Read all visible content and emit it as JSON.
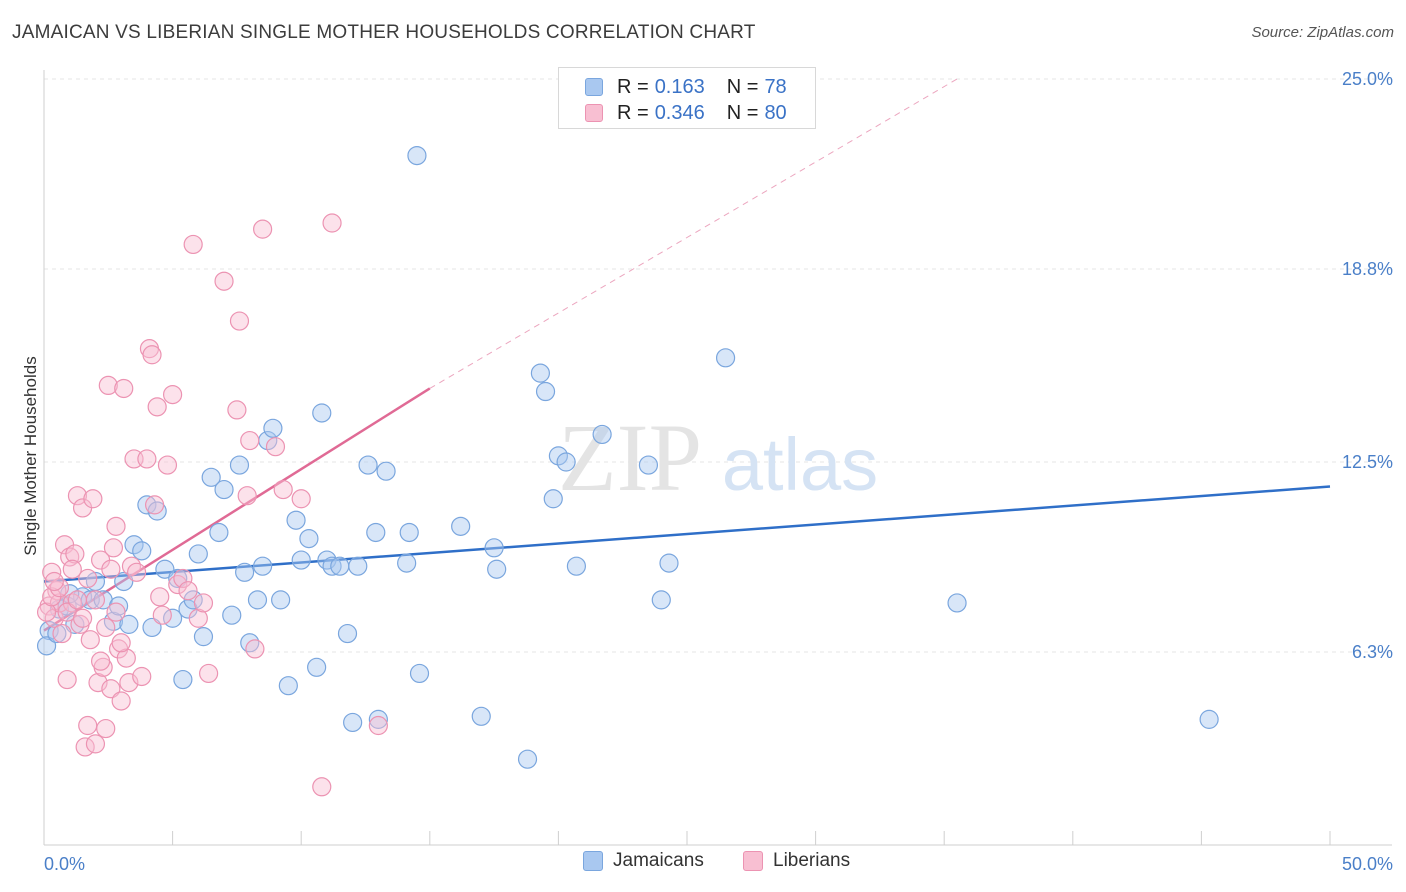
{
  "title": "JAMAICAN VS LIBERIAN SINGLE MOTHER HOUSEHOLDS CORRELATION CHART",
  "source": "Source: ZipAtlas.com",
  "watermark": {
    "zip": "ZIP",
    "atlas": "atlas"
  },
  "legend_stats": [
    {
      "r_label": "R =",
      "r_value": "0.163",
      "n_label": "N =",
      "n_value": "78",
      "color": "#a9c8f0",
      "border": "#7aa6de"
    },
    {
      "r_label": "R =",
      "r_value": "0.346",
      "n_label": "N =",
      "n_value": "80",
      "color": "#f8bfd2",
      "border": "#ec93b2"
    }
  ],
  "chart_data": {
    "type": "scatter",
    "title": "JAMAICAN VS LIBERIAN SINGLE MOTHER HOUSEHOLDS CORRELATION CHART",
    "xlabel": "",
    "ylabel": "Single Mother Households",
    "xlim": [
      0,
      50
    ],
    "ylim": [
      0,
      25.0
    ],
    "x_tick_labels": [
      "0.0%",
      "50.0%"
    ],
    "y_ticks": [
      6.3,
      12.5,
      18.8,
      25.0
    ],
    "y_tick_labels": [
      "6.3%",
      "12.5%",
      "18.8%",
      "25.0%"
    ],
    "grid": true,
    "legend": "bottom",
    "series": [
      {
        "name": "Jamaicans",
        "color": "#7aa6de",
        "fill": "#a9c8f0",
        "line_color": "#2f6fc8",
        "trend": {
          "x": [
            0,
            50
          ],
          "y": [
            8.6,
            11.7
          ],
          "dashed_extension": false
        },
        "points": [
          [
            0.2,
            7.0
          ],
          [
            0.6,
            7.7
          ],
          [
            0.9,
            7.8
          ],
          [
            1.2,
            7.2
          ],
          [
            1.5,
            8.1
          ],
          [
            1.8,
            8.0
          ],
          [
            2.0,
            8.6
          ],
          [
            2.3,
            8.0
          ],
          [
            2.7,
            7.3
          ],
          [
            2.9,
            7.8
          ],
          [
            3.1,
            8.6
          ],
          [
            3.3,
            7.2
          ],
          [
            3.5,
            9.8
          ],
          [
            3.8,
            9.6
          ],
          [
            4.0,
            11.1
          ],
          [
            4.2,
            7.1
          ],
          [
            4.4,
            10.9
          ],
          [
            4.7,
            9.0
          ],
          [
            5.0,
            7.4
          ],
          [
            5.2,
            8.7
          ],
          [
            5.4,
            5.4
          ],
          [
            5.6,
            7.7
          ],
          [
            5.8,
            8.0
          ],
          [
            6.0,
            9.5
          ],
          [
            6.2,
            6.8
          ],
          [
            6.5,
            12.0
          ],
          [
            6.8,
            10.2
          ],
          [
            7.0,
            11.6
          ],
          [
            7.3,
            7.5
          ],
          [
            7.6,
            12.4
          ],
          [
            7.8,
            8.9
          ],
          [
            8.0,
            6.6
          ],
          [
            8.3,
            8.0
          ],
          [
            8.5,
            9.1
          ],
          [
            8.7,
            13.2
          ],
          [
            8.9,
            13.6
          ],
          [
            9.2,
            8.0
          ],
          [
            9.5,
            5.2
          ],
          [
            9.8,
            10.6
          ],
          [
            10.0,
            9.3
          ],
          [
            10.3,
            10.0
          ],
          [
            10.6,
            5.8
          ],
          [
            10.8,
            14.1
          ],
          [
            11.0,
            9.3
          ],
          [
            11.2,
            9.1
          ],
          [
            11.5,
            9.1
          ],
          [
            11.8,
            6.9
          ],
          [
            12.0,
            4.0
          ],
          [
            12.2,
            9.1
          ],
          [
            12.6,
            12.4
          ],
          [
            12.9,
            10.2
          ],
          [
            13.0,
            4.1
          ],
          [
            13.3,
            12.2
          ],
          [
            14.1,
            9.2
          ],
          [
            14.2,
            10.2
          ],
          [
            14.5,
            22.5
          ],
          [
            14.6,
            5.6
          ],
          [
            16.2,
            10.4
          ],
          [
            17.0,
            4.2
          ],
          [
            17.5,
            9.7
          ],
          [
            17.6,
            9.0
          ],
          [
            18.8,
            2.8
          ],
          [
            19.3,
            15.4
          ],
          [
            19.5,
            14.8
          ],
          [
            19.8,
            11.3
          ],
          [
            20.0,
            12.7
          ],
          [
            20.3,
            12.5
          ],
          [
            20.7,
            9.1
          ],
          [
            21.7,
            13.4
          ],
          [
            23.5,
            12.4
          ],
          [
            24.0,
            8.0
          ],
          [
            24.3,
            9.2
          ],
          [
            26.5,
            15.9
          ],
          [
            35.5,
            7.9
          ],
          [
            45.3,
            4.1
          ],
          [
            0.1,
            6.5
          ],
          [
            1.0,
            8.2
          ],
          [
            0.5,
            6.9
          ]
        ]
      },
      {
        "name": "Liberians",
        "color": "#ec93b2",
        "fill": "#f8bfd2",
        "line_color": "#e06a95",
        "trend": {
          "x": [
            0,
            15.0
          ],
          "y": [
            7.0,
            14.9
          ],
          "dashed_extension": true,
          "dashed_to": [
            35.5,
            25.0
          ]
        },
        "points": [
          [
            0.2,
            7.8
          ],
          [
            0.3,
            8.9
          ],
          [
            0.4,
            7.4
          ],
          [
            0.5,
            8.3
          ],
          [
            0.6,
            7.9
          ],
          [
            0.7,
            6.9
          ],
          [
            0.8,
            9.8
          ],
          [
            0.9,
            5.4
          ],
          [
            1.0,
            9.4
          ],
          [
            1.1,
            7.9
          ],
          [
            1.2,
            9.5
          ],
          [
            1.3,
            11.4
          ],
          [
            1.4,
            7.2
          ],
          [
            1.5,
            11.0
          ],
          [
            1.6,
            3.2
          ],
          [
            1.7,
            3.9
          ],
          [
            1.8,
            6.7
          ],
          [
            1.9,
            11.3
          ],
          [
            2.0,
            3.3
          ],
          [
            2.1,
            5.3
          ],
          [
            2.2,
            9.3
          ],
          [
            2.3,
            5.8
          ],
          [
            2.4,
            3.8
          ],
          [
            2.5,
            15.0
          ],
          [
            2.6,
            5.1
          ],
          [
            2.7,
            9.7
          ],
          [
            2.8,
            10.4
          ],
          [
            2.9,
            6.4
          ],
          [
            3.0,
            4.7
          ],
          [
            3.1,
            14.9
          ],
          [
            3.2,
            6.1
          ],
          [
            3.3,
            5.3
          ],
          [
            3.4,
            9.1
          ],
          [
            3.5,
            12.6
          ],
          [
            3.6,
            8.9
          ],
          [
            3.8,
            5.5
          ],
          [
            4.0,
            12.6
          ],
          [
            4.1,
            16.2
          ],
          [
            4.2,
            16.0
          ],
          [
            4.3,
            11.1
          ],
          [
            4.4,
            14.3
          ],
          [
            4.5,
            8.1
          ],
          [
            4.6,
            7.5
          ],
          [
            4.8,
            12.4
          ],
          [
            5.0,
            14.7
          ],
          [
            5.2,
            8.5
          ],
          [
            5.4,
            8.7
          ],
          [
            5.6,
            8.3
          ],
          [
            5.8,
            19.6
          ],
          [
            6.0,
            7.4
          ],
          [
            6.2,
            7.9
          ],
          [
            6.4,
            5.6
          ],
          [
            7.0,
            18.4
          ],
          [
            7.5,
            14.2
          ],
          [
            7.6,
            17.1
          ],
          [
            7.9,
            11.4
          ],
          [
            8.0,
            13.2
          ],
          [
            8.2,
            6.4
          ],
          [
            8.5,
            20.1
          ],
          [
            9.0,
            13.0
          ],
          [
            9.3,
            11.6
          ],
          [
            10.0,
            11.3
          ],
          [
            10.8,
            1.9
          ],
          [
            11.2,
            20.3
          ],
          [
            13.0,
            3.9
          ],
          [
            0.1,
            7.6
          ],
          [
            0.3,
            8.1
          ],
          [
            0.6,
            8.4
          ],
          [
            0.9,
            7.6
          ],
          [
            1.1,
            9.0
          ],
          [
            1.3,
            8.0
          ],
          [
            1.5,
            7.4
          ],
          [
            1.7,
            8.7
          ],
          [
            2.0,
            8.0
          ],
          [
            2.2,
            6.0
          ],
          [
            2.4,
            7.1
          ],
          [
            2.6,
            9.0
          ],
          [
            2.8,
            7.6
          ],
          [
            3.0,
            6.6
          ],
          [
            0.4,
            8.6
          ]
        ]
      }
    ]
  }
}
